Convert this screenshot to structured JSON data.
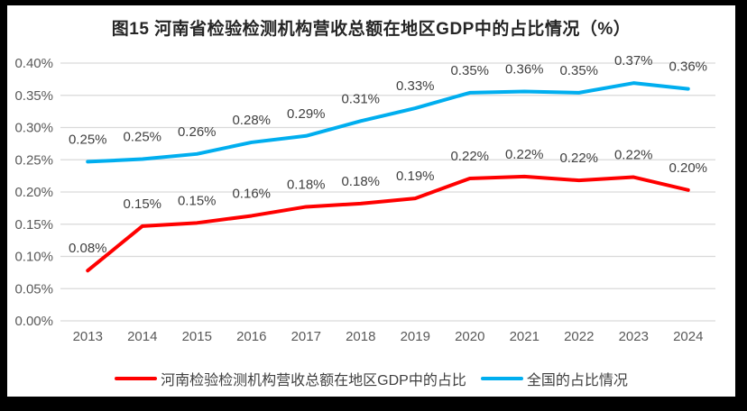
{
  "frame": {
    "border_color": "#000000",
    "background": "#ffffff"
  },
  "chart_data": {
    "type": "line",
    "title": "图15  河南省检验检测机构营收总额在地区GDP中的占比情况（%）",
    "categories": [
      "2013",
      "2014",
      "2015",
      "2016",
      "2017",
      "2018",
      "2019",
      "2020",
      "2021",
      "2022",
      "2023",
      "2024"
    ],
    "xlabel": "",
    "ylabel": "",
    "unit": "%",
    "y_axis": {
      "min": 0.0,
      "max": 0.4,
      "step": 0.05,
      "ticks": [
        "0.40%",
        "0.35%",
        "0.30%",
        "0.25%",
        "0.20%",
        "0.15%",
        "0.10%",
        "0.05%",
        "0.00%"
      ]
    },
    "grid": true,
    "legend_position": "bottom",
    "colors": {
      "henan": "#FF0000",
      "national": "#00AEEF",
      "gridline": "#D9D9D9"
    },
    "series": [
      {
        "key": "henan",
        "name": "河南检验检测机构营收总额在地区GDP中的占比",
        "color": "#FF0000",
        "values": [
          0.08,
          0.15,
          0.15,
          0.16,
          0.18,
          0.18,
          0.19,
          0.22,
          0.22,
          0.22,
          0.22,
          0.2
        ],
        "labels": [
          "0.08%",
          "0.15%",
          "0.15%",
          "0.16%",
          "0.18%",
          "0.18%",
          "0.19%",
          "0.22%",
          "0.22%",
          "0.22%",
          "0.22%",
          "0.20%"
        ],
        "plot_values": [
          0.078,
          0.147,
          0.152,
          0.163,
          0.177,
          0.182,
          0.19,
          0.221,
          0.224,
          0.218,
          0.223,
          0.203
        ]
      },
      {
        "key": "national",
        "name": "全国的占比情况",
        "color": "#00AEEF",
        "values": [
          0.25,
          0.25,
          0.26,
          0.28,
          0.29,
          0.31,
          0.33,
          0.35,
          0.36,
          0.35,
          0.37,
          0.36
        ],
        "labels": [
          "0.25%",
          "0.25%",
          "0.26%",
          "0.28%",
          "0.29%",
          "0.31%",
          "0.33%",
          "0.35%",
          "0.36%",
          "0.35%",
          "0.37%",
          "0.36%"
        ],
        "plot_values": [
          0.247,
          0.251,
          0.259,
          0.277,
          0.287,
          0.31,
          0.33,
          0.354,
          0.356,
          0.354,
          0.369,
          0.36
        ]
      }
    ]
  }
}
